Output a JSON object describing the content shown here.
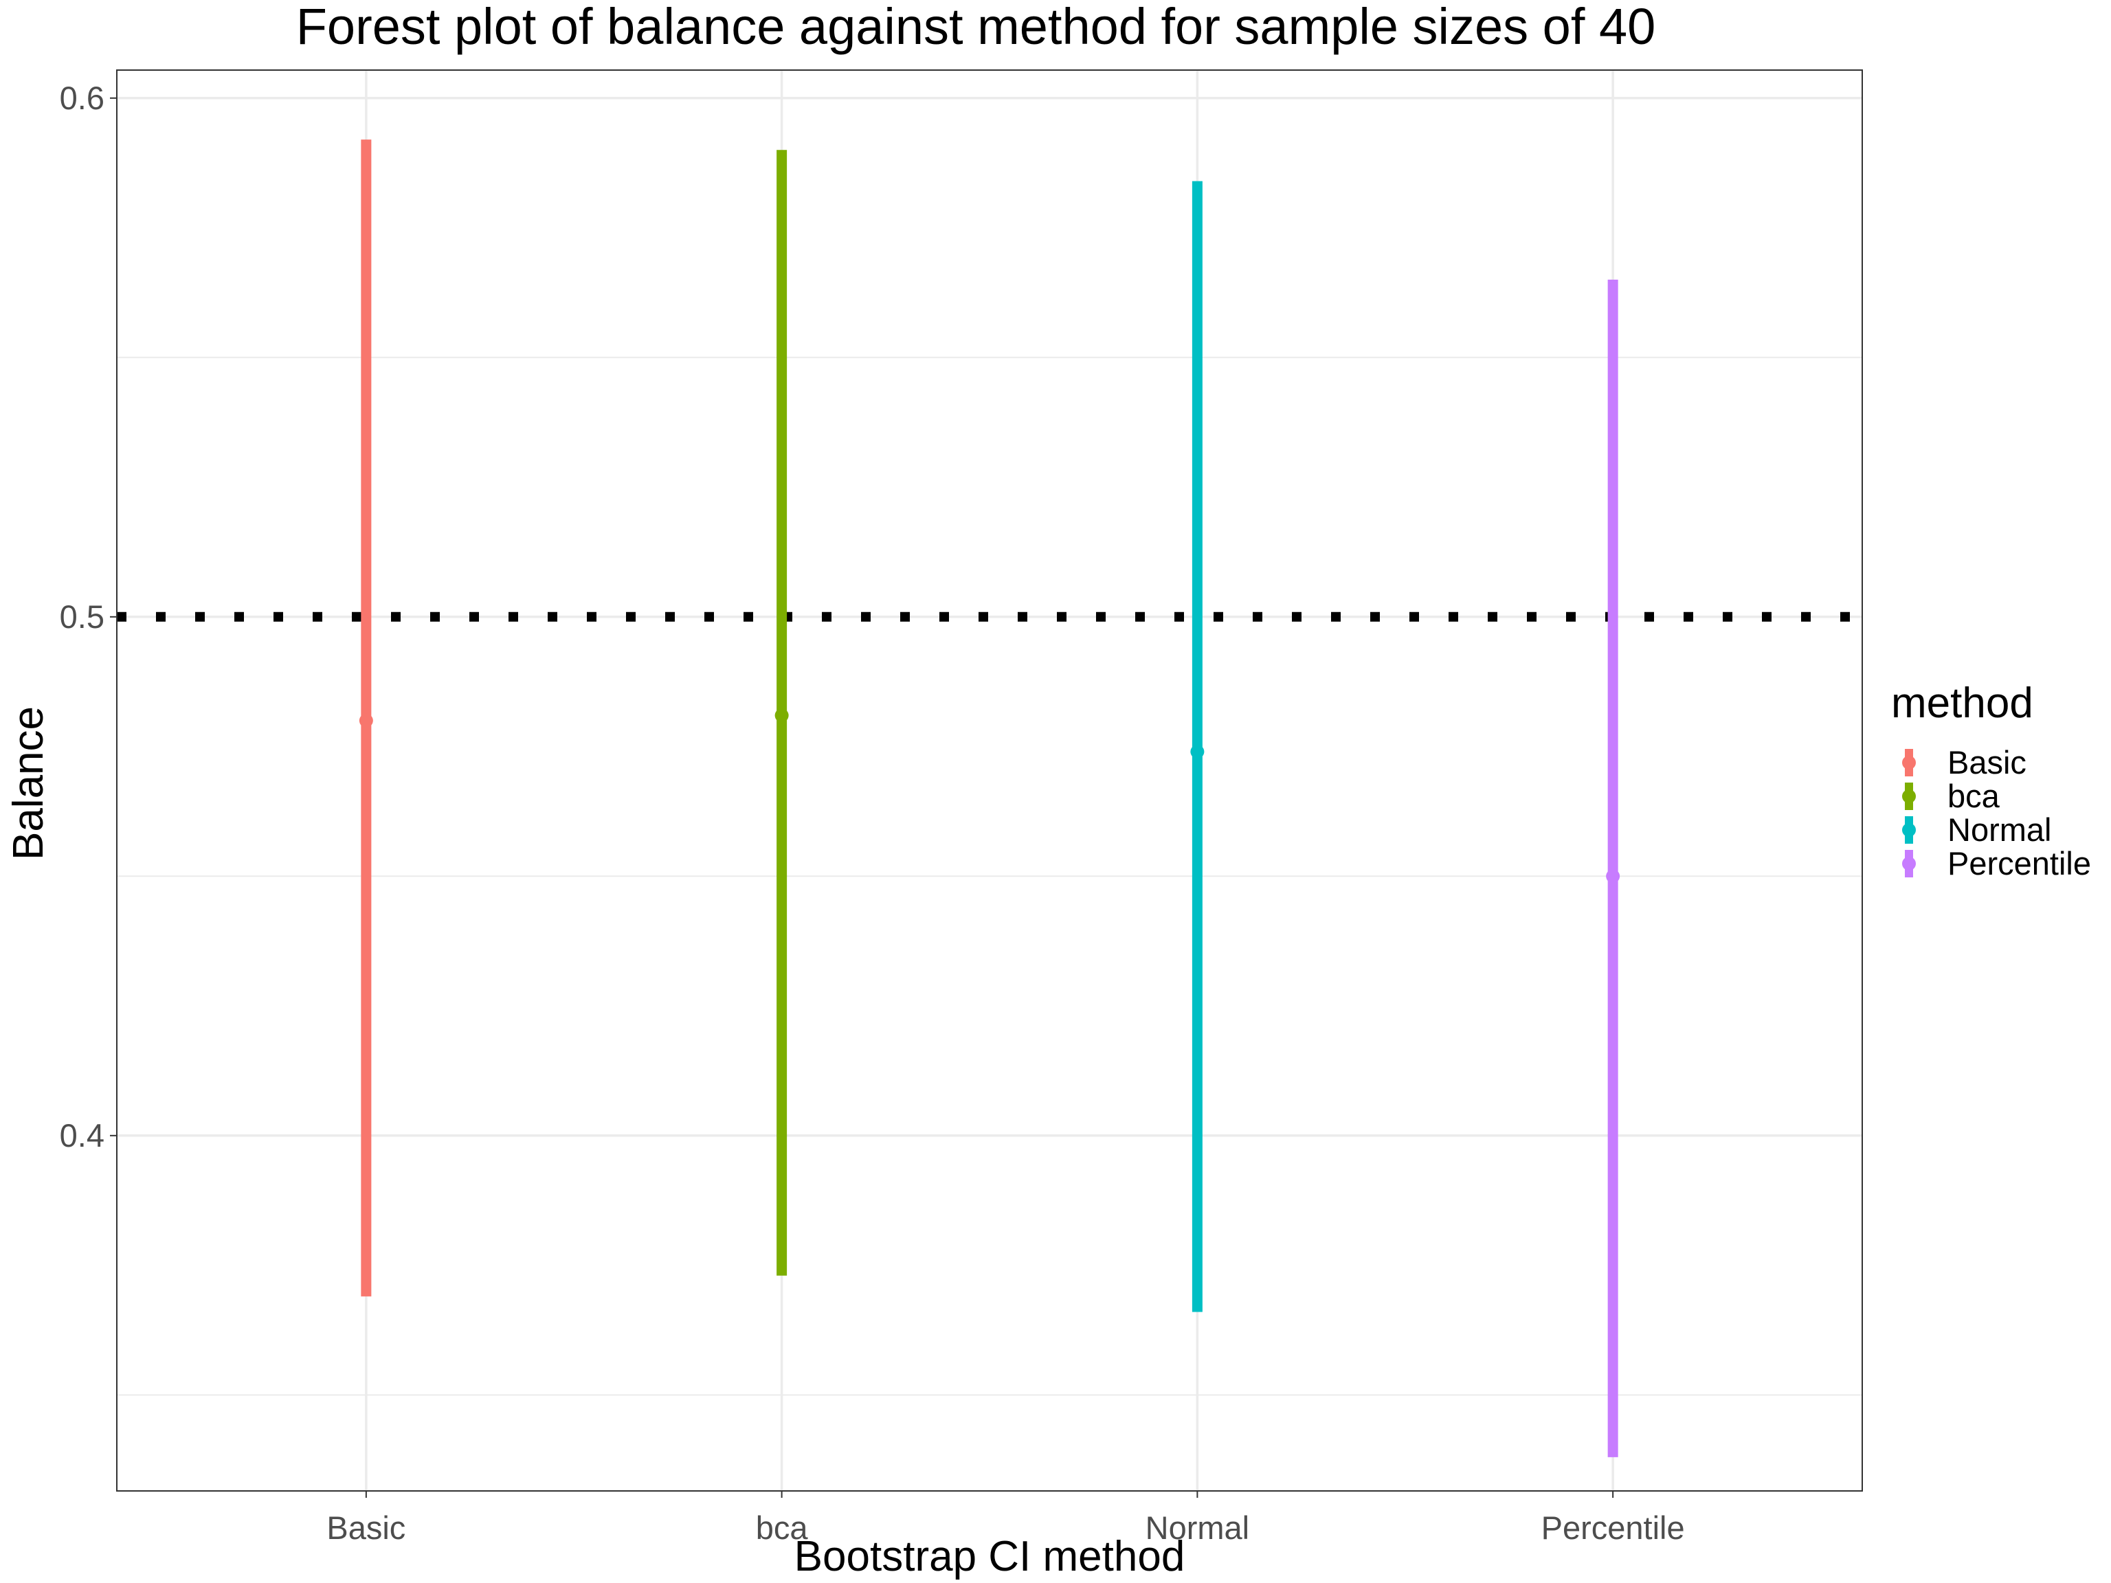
{
  "chart_data": {
    "type": "errorbar",
    "title": "Forest plot of balance against method for sample sizes of 40",
    "xlabel": "Bootstrap CI method",
    "ylabel": "Balance",
    "categories": [
      "Basic",
      "bca",
      "Normal",
      "Percentile"
    ],
    "points": [
      {
        "method": "Basic",
        "estimate": 0.48,
        "lower": 0.369,
        "upper": 0.592,
        "color": "#F8766D"
      },
      {
        "method": "bca",
        "estimate": 0.481,
        "lower": 0.373,
        "upper": 0.59,
        "color": "#7CAE00"
      },
      {
        "method": "Normal",
        "estimate": 0.474,
        "lower": 0.366,
        "upper": 0.584,
        "color": "#00BFC4"
      },
      {
        "method": "Percentile",
        "estimate": 0.45,
        "lower": 0.338,
        "upper": 0.565,
        "color": "#C77CFF"
      }
    ],
    "reference_line": {
      "y": 0.5,
      "style": "dotted",
      "color": "#000000"
    },
    "ylim": [
      0.3315,
      0.6054
    ],
    "yticks": [
      0.4,
      0.5,
      0.6
    ],
    "ytick_labels": [
      "0.4",
      "0.5",
      "0.6"
    ],
    "grid": true,
    "legend": {
      "title": "method",
      "position": "right",
      "entries": [
        "Basic",
        "bca",
        "Normal",
        "Percentile"
      ]
    }
  }
}
